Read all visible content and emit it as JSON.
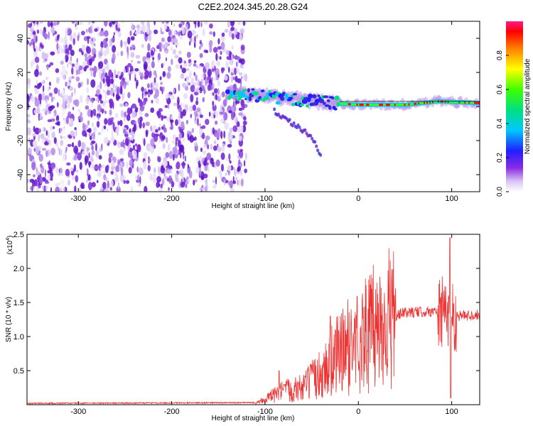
{
  "title": "C2E2.2024.345.20.28.G24",
  "chart_data": [
    {
      "type": "heatmap",
      "xlabel": "Height of straight line (km)",
      "ylabel": "Frequency (Hz)",
      "xlim": [
        -355,
        130
      ],
      "ylim": [
        -50,
        50
      ],
      "x_ticks": [
        -300,
        -200,
        -100,
        0,
        100
      ],
      "y_ticks": [
        -40,
        -20,
        0,
        20,
        40
      ],
      "colorbar": {
        "label": "Normalized spectral amplitude",
        "range": [
          0,
          1
        ],
        "ticks": [
          "0.0",
          "0.2",
          "0.4",
          "0.6",
          "0.8"
        ]
      },
      "noise_region_x": [
        -355,
        -120
      ],
      "signal_track": [
        {
          "x": -140,
          "y": 8
        },
        {
          "x": -100,
          "y": 6
        },
        {
          "x": -60,
          "y": 4
        },
        {
          "x": -30,
          "y": 2
        },
        {
          "x": 0,
          "y": 1
        },
        {
          "x": 50,
          "y": 1
        },
        {
          "x": 85,
          "y": 3
        },
        {
          "x": 130,
          "y": 2
        }
      ],
      "branch_track": [
        {
          "x": -90,
          "y": -3
        },
        {
          "x": -70,
          "y": -10
        },
        {
          "x": -50,
          "y": -18
        },
        {
          "x": -40,
          "y": -30
        }
      ],
      "grid": false
    },
    {
      "type": "line",
      "xlabel": "Height of straight line (km)",
      "ylabel": "SNR (10 * v/v)",
      "y_multiplier": "(x10",
      "y_multiplier_exp": "4",
      "y_multiplier_close": ")",
      "xlim": [
        -355,
        130
      ],
      "ylim": [
        0,
        2.5
      ],
      "x_ticks": [
        -300,
        -200,
        -100,
        0,
        100
      ],
      "y_ticks": [
        "0.5",
        "1.0",
        "1.5",
        "2.0",
        "2.5"
      ],
      "series_color": "#ee3333",
      "envelope": [
        {
          "x": -355,
          "y": 0.02
        },
        {
          "x": -110,
          "y": 0.03
        },
        {
          "x": -100,
          "y": 0.08
        },
        {
          "x": -80,
          "y": 0.2
        },
        {
          "x": -60,
          "y": 0.25
        },
        {
          "x": -40,
          "y": 0.45
        },
        {
          "x": -25,
          "y": 0.7
        },
        {
          "x": -10,
          "y": 0.85
        },
        {
          "x": 10,
          "y": 1.05
        },
        {
          "x": 30,
          "y": 1.25
        },
        {
          "x": 50,
          "y": 1.35
        },
        {
          "x": 80,
          "y": 1.37
        },
        {
          "x": 100,
          "y": 1.3
        },
        {
          "x": 130,
          "y": 1.32
        }
      ],
      "spikes": [
        {
          "x": 98,
          "y": 2.45
        },
        {
          "x": 99,
          "y": 0.1
        },
        {
          "x": -30,
          "y": 1.3
        },
        {
          "x": -85,
          "y": 0.5
        }
      ],
      "grid": false
    }
  ]
}
